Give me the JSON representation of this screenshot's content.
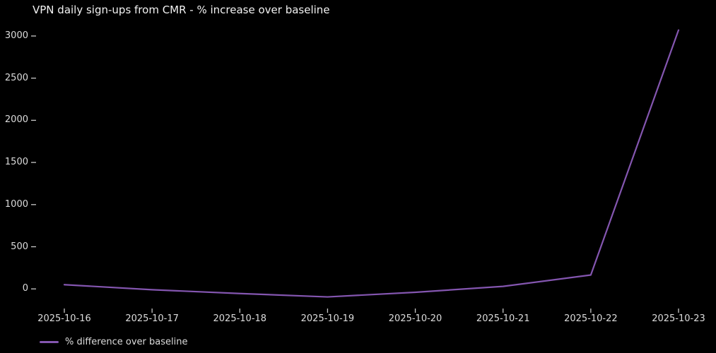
{
  "chart_data": {
    "type": "line",
    "title": "VPN daily sign-ups from CMR - % increase over baseline",
    "x": [
      "2025-10-16",
      "2025-10-17",
      "2025-10-18",
      "2025-10-19",
      "2025-10-20",
      "2025-10-21",
      "2025-10-22",
      "2025-10-23"
    ],
    "series": [
      {
        "name": "% difference over baseline",
        "values": [
          50,
          -10,
          -55,
          -95,
          -40,
          30,
          165,
          3070
        ],
        "color": "#8456b0"
      }
    ],
    "yticks": [
      0,
      500,
      1000,
      1500,
      2000,
      2500,
      3000
    ],
    "ylim": [
      -200,
      3150
    ],
    "xlabel": "",
    "ylabel": "",
    "grid": false,
    "legend_position": "bottom-left",
    "background_color": "#000000",
    "text_color": "#dcdcdc",
    "tick_color": "#c8c8c8"
  }
}
